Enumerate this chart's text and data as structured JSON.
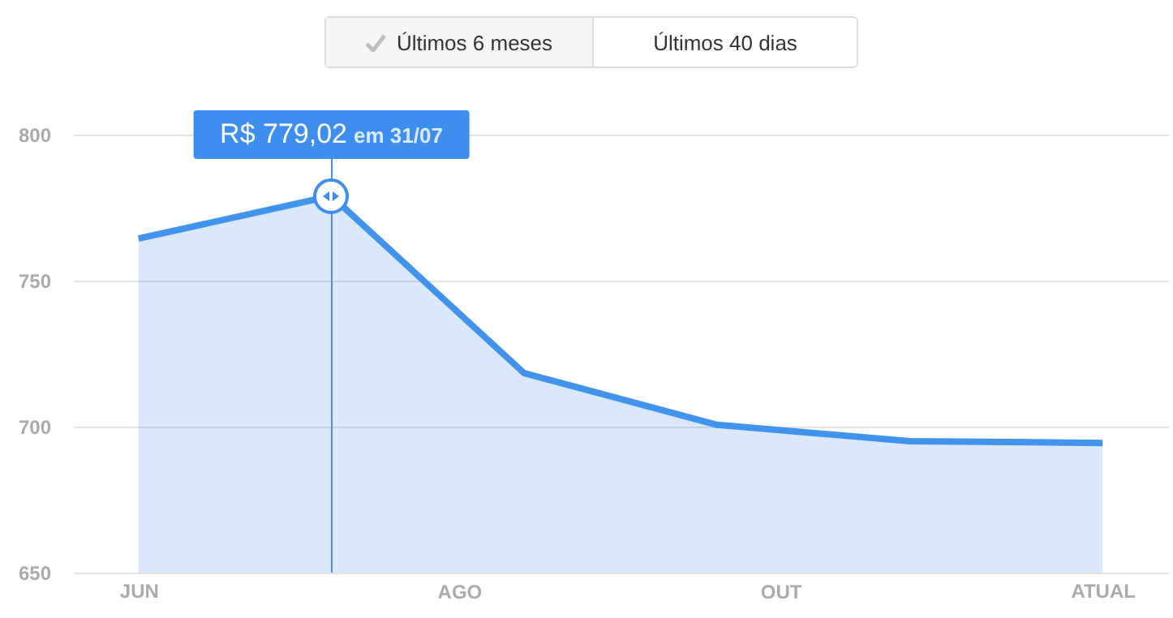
{
  "chart_data": {
    "type": "area",
    "categories": [
      "JUN",
      null,
      null,
      null,
      null,
      "ATUAL"
    ],
    "series": [
      {
        "color": "#4193eb",
        "values": [
          764.4,
          779,
          718.3,
          700.6,
          695,
          694.4
        ]
      }
    ],
    "ylim": [
      650,
      800
    ],
    "yticks": [
      650,
      700,
      750,
      800
    ],
    "grid": "y",
    "marker": "none",
    "annotations": [
      "Últimos 6 meses",
      "Últimos 40 dias",
      "AGO",
      "OUT",
      {
        "text": "R$ 779,02",
        "y": 779
      },
      "em 31/07"
    ]
  }
}
